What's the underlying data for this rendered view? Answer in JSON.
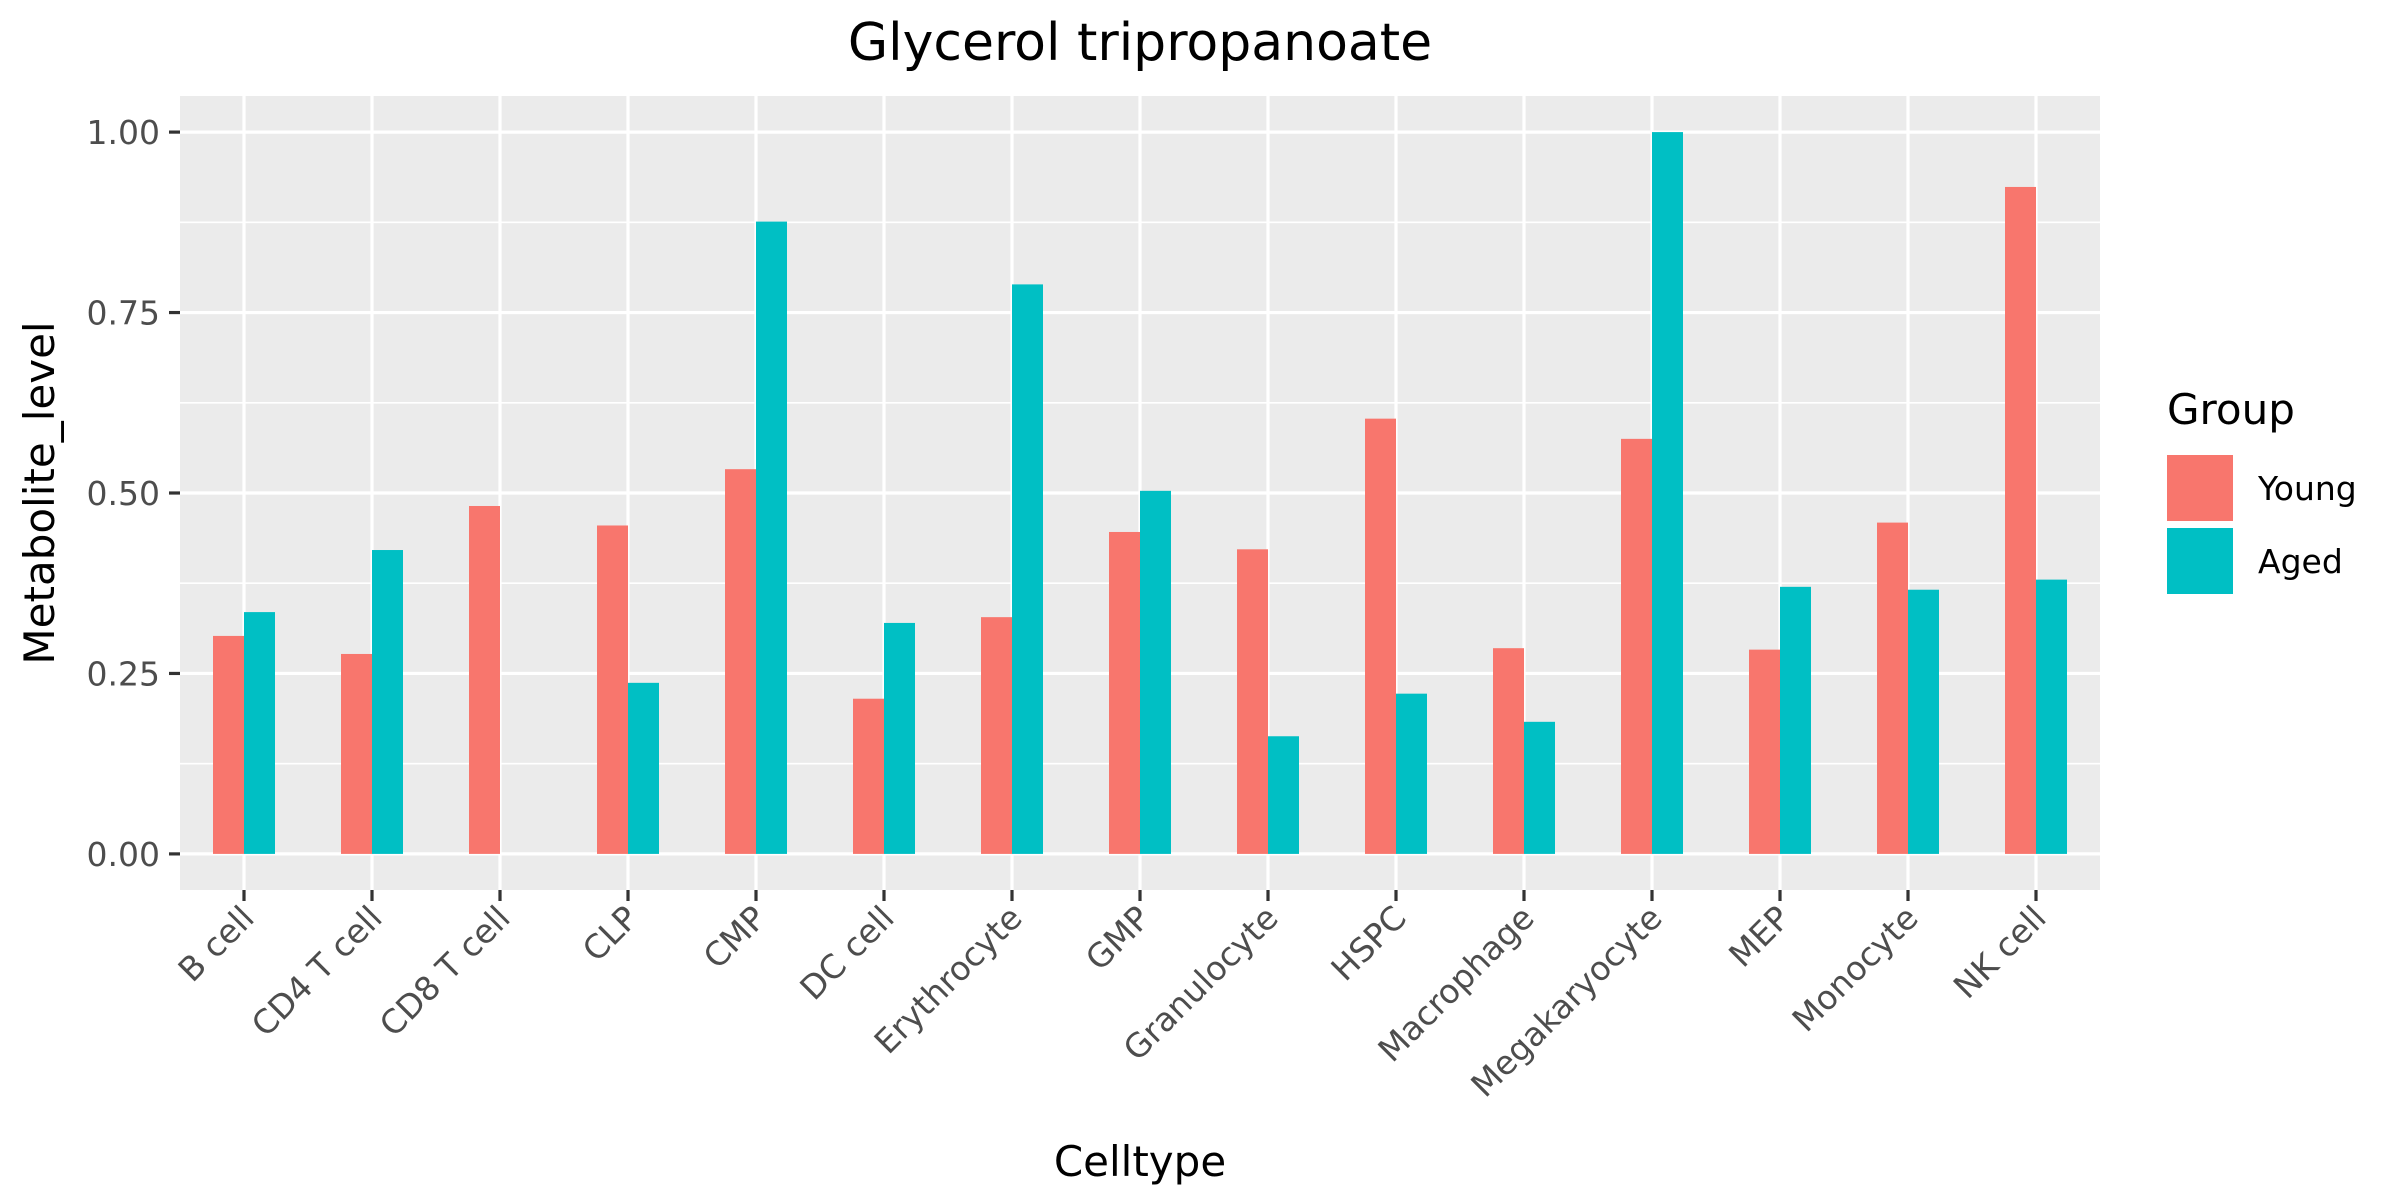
{
  "chart_data": {
    "type": "bar",
    "title": "Glycerol tripropanoate",
    "xlabel": "Celltype",
    "ylabel": "Metabolite_level",
    "categories": [
      "B cell",
      "CD4 T cell",
      "CD8 T cell",
      "CLP",
      "CMP",
      "DC cell",
      "Erythrocyte",
      "GMP",
      "Granulocyte",
      "HSPC",
      "Macrophage",
      "Megakaryocyte",
      "MEP",
      "Monocyte",
      "NK cell"
    ],
    "series": [
      {
        "name": "Young",
        "color": "#F8766D",
        "values": [
          0.302,
          0.277,
          0.482,
          0.455,
          0.533,
          0.215,
          0.328,
          0.446,
          0.422,
          0.603,
          0.285,
          0.575,
          0.283,
          0.459,
          0.924
        ]
      },
      {
        "name": "Aged",
        "color": "#00BFC4",
        "values": [
          0.335,
          0.421,
          null,
          0.237,
          0.876,
          0.32,
          0.789,
          0.503,
          0.163,
          0.222,
          0.183,
          1.0,
          0.37,
          0.366,
          0.38
        ]
      }
    ],
    "ylim": [
      -0.05,
      1.05
    ],
    "yticks": [
      0.0,
      0.25,
      0.5,
      0.75,
      1.0
    ],
    "ytick_labels": [
      "0.00",
      "0.25",
      "0.50",
      "0.75",
      "1.00"
    ],
    "grid": true,
    "legend": {
      "title": "Group",
      "position": "right"
    }
  }
}
